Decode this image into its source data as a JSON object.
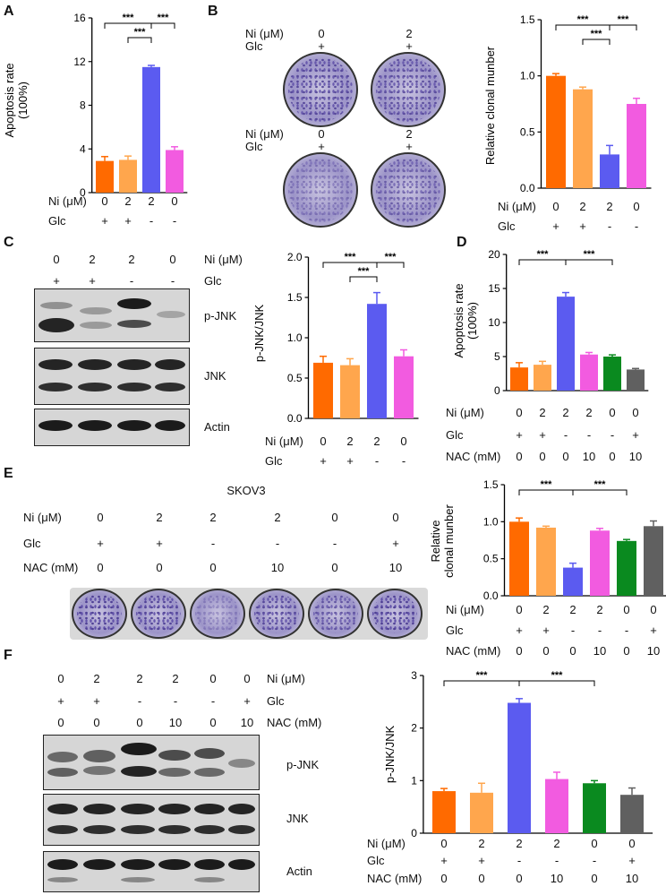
{
  "panel_labels": {
    "A": "A",
    "B": "B",
    "C": "C",
    "D": "D",
    "E": "E",
    "F": "F"
  },
  "condition_labels": {
    "ni": "Ni (μM)",
    "glc": "Glc",
    "nac": "NAC (mM)"
  },
  "row_values": {
    "ni4": [
      "0",
      "2",
      "2",
      "0"
    ],
    "glc4": [
      "+",
      "+",
      "-",
      "-"
    ],
    "ni6": [
      "0",
      "2",
      "2",
      "2",
      "0",
      "0"
    ],
    "glc6": [
      "+",
      "+",
      "-",
      "-",
      "-",
      "+"
    ],
    "nac6": [
      "0",
      "0",
      "0",
      "10",
      "0",
      "10"
    ]
  },
  "panel_b": {
    "ni": "Ni (μM)",
    "glc": "Glc",
    "top_ni": [
      "0",
      "2"
    ],
    "top_glc": [
      "+",
      "+"
    ],
    "bot_ni": [
      "0",
      "2"
    ],
    "bot_glc": [
      "+",
      "+"
    ]
  },
  "panel_c_blot": {
    "ni_values": [
      "0",
      "2",
      "2",
      "0"
    ],
    "glc_values": [
      "+",
      "+",
      "-",
      "-"
    ],
    "ni_label": "Ni (μM)",
    "glc_label": "Glc",
    "bands": [
      "p-JNK",
      "JNK",
      "Actin"
    ]
  },
  "panel_e": {
    "cell_line": "SKOV3",
    "ni_label": "Ni (μM)",
    "glc_label": "Glc",
    "nac_label": "NAC (mM)",
    "ni_values": [
      "0",
      "2",
      "2",
      "2",
      "0",
      "0"
    ],
    "glc_values": [
      "+",
      "+",
      "-",
      "-",
      "-",
      "+"
    ],
    "nac_values": [
      "0",
      "0",
      "0",
      "10",
      "0",
      "10"
    ]
  },
  "panel_f_blot": {
    "ni_values": [
      "0",
      "2",
      "2",
      "2",
      "0",
      "0"
    ],
    "glc_values": [
      "+",
      "+",
      "-",
      "-",
      "-",
      "+"
    ],
    "nac_values": [
      "0",
      "0",
      "0",
      "10",
      "0",
      "10"
    ],
    "ni_label": "Ni (μM)",
    "glc_label": "Glc",
    "nac_label": "NAC (mM)",
    "bands": [
      "p-JNK",
      "JNK",
      "Actin"
    ]
  },
  "chart_data": [
    {
      "id": "A",
      "type": "bar",
      "ylabel": "Apoptosis rate\n(100%)",
      "ylim": [
        0,
        16
      ],
      "yticks": [
        0,
        4,
        8,
        12,
        16
      ],
      "categories": [
        "1",
        "2",
        "3",
        "4"
      ],
      "values": [
        2.9,
        3.0,
        11.5,
        3.9
      ],
      "errors": [
        0.4,
        0.35,
        0.15,
        0.3
      ],
      "colors": [
        "#ff6a00",
        "#ffa64d",
        "#5b5bf0",
        "#f25be0"
      ],
      "significance": [
        "***",
        "***",
        "***"
      ]
    },
    {
      "id": "B",
      "type": "bar",
      "ylabel": "Relative clonal munber",
      "ylim": [
        0,
        1.5
      ],
      "yticks": [
        0.0,
        0.5,
        1.0,
        1.5
      ],
      "categories": [
        "1",
        "2",
        "3",
        "4"
      ],
      "values": [
        1.0,
        0.88,
        0.3,
        0.75
      ],
      "errors": [
        0.02,
        0.02,
        0.08,
        0.05
      ],
      "colors": [
        "#ff6a00",
        "#ffa64d",
        "#5b5bf0",
        "#f25be0"
      ],
      "significance": [
        "***",
        "***",
        "***"
      ]
    },
    {
      "id": "C",
      "type": "bar",
      "ylabel": "p-JNK/JNK",
      "ylim": [
        0,
        2.0
      ],
      "yticks": [
        0.0,
        0.5,
        1.0,
        1.5,
        2.0
      ],
      "categories": [
        "1",
        "2",
        "3",
        "4"
      ],
      "values": [
        0.69,
        0.66,
        1.42,
        0.77
      ],
      "errors": [
        0.08,
        0.08,
        0.14,
        0.08
      ],
      "colors": [
        "#ff6a00",
        "#ffa64d",
        "#5b5bf0",
        "#f25be0"
      ],
      "significance": [
        "***",
        "***",
        "***"
      ]
    },
    {
      "id": "D",
      "type": "bar",
      "ylabel": "Apoptosis rate\n(100%)",
      "ylim": [
        0,
        20
      ],
      "yticks": [
        0,
        5,
        10,
        15,
        20
      ],
      "categories": [
        "1",
        "2",
        "3",
        "4",
        "5",
        "6"
      ],
      "values": [
        3.4,
        3.8,
        13.8,
        5.3,
        5.0,
        3.1
      ],
      "errors": [
        0.7,
        0.5,
        0.6,
        0.3,
        0.25,
        0.15
      ],
      "colors": [
        "#ff6a00",
        "#ffa64d",
        "#5b5bf0",
        "#f25be0",
        "#0a8a1f",
        "#606060"
      ],
      "significance": [
        "***",
        "***"
      ]
    },
    {
      "id": "E",
      "type": "bar",
      "ylabel": "Relative\nclonal munber",
      "ylim": [
        0,
        1.5
      ],
      "yticks": [
        0.0,
        0.5,
        1.0,
        1.5
      ],
      "categories": [
        "1",
        "2",
        "3",
        "4",
        "5",
        "6"
      ],
      "values": [
        1.0,
        0.92,
        0.38,
        0.88,
        0.74,
        0.94
      ],
      "errors": [
        0.05,
        0.02,
        0.06,
        0.03,
        0.02,
        0.07
      ],
      "colors": [
        "#ff6a00",
        "#ffa64d",
        "#5b5bf0",
        "#f25be0",
        "#0a8a1f",
        "#606060"
      ],
      "significance": [
        "***",
        "***"
      ]
    },
    {
      "id": "F",
      "type": "bar",
      "ylabel": "p-JNK/JNK",
      "ylim": [
        0,
        3
      ],
      "yticks": [
        0,
        1,
        2,
        3
      ],
      "categories": [
        "1",
        "2",
        "3",
        "4",
        "5",
        "6"
      ],
      "values": [
        0.8,
        0.77,
        2.48,
        1.03,
        0.95,
        0.73
      ],
      "errors": [
        0.05,
        0.18,
        0.08,
        0.13,
        0.05,
        0.13
      ],
      "colors": [
        "#ff6a00",
        "#ffa64d",
        "#5b5bf0",
        "#f25be0",
        "#0a8a1f",
        "#606060"
      ],
      "significance": [
        "***",
        "***"
      ]
    }
  ]
}
